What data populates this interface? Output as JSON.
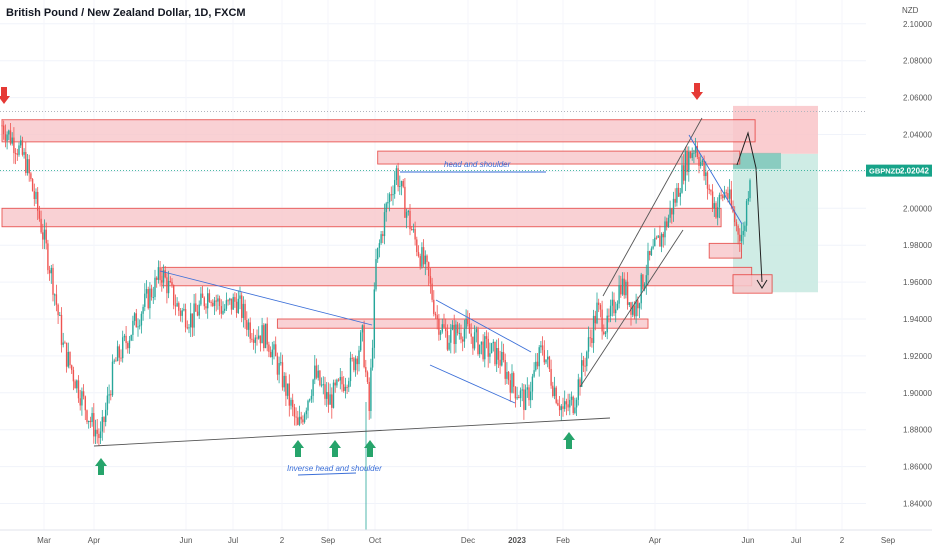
{
  "title": "British Pound / New Zealand Dollar, 1D, FXCM",
  "axis_unit": "NZD",
  "colors": {
    "up": "#26a69a",
    "down": "#ef5350",
    "zone_fill": "#f8c9cd",
    "zone_stroke": "#e53935",
    "arrow_down": "#e53935",
    "arrow_up": "#26a46b",
    "line_blue": "#3b6fd8",
    "line_dark": "#555555",
    "stop_fill": "#f9c4c8",
    "target_fill": "#c7e9e0",
    "price_label": "#17a389"
  },
  "chart_data": {
    "type": "candlestick",
    "title": "British Pound / New Zealand Dollar, 1D, FXCM",
    "ylabel": "NZD",
    "ylim": [
      1.825,
      2.105
    ],
    "y_ticks": [
      "2.10000",
      "2.08000",
      "2.06000",
      "2.04000",
      "2.00000",
      "1.98000",
      "1.96000",
      "1.94000",
      "1.92000",
      "1.90000",
      "1.88000",
      "1.86000",
      "1.84000"
    ],
    "x_ticks": [
      "Mar",
      "Apr",
      "Jun",
      "Jul",
      "2",
      "Sep",
      "Oct",
      "Dec",
      "2023",
      "Feb",
      "Apr",
      "Jun",
      "Jul",
      "2",
      "Sep"
    ],
    "current_price": {
      "symbol": "GBPNZD",
      "value": "2.02042",
      "y": 2.02042
    },
    "series_keypoints": [
      {
        "d": 0,
        "y": 2.045
      },
      {
        "d": 8,
        "y": 2.035
      },
      {
        "d": 14,
        "y": 2.025
      },
      {
        "d": 22,
        "y": 1.995
      },
      {
        "d": 30,
        "y": 1.96
      },
      {
        "d": 36,
        "y": 1.925
      },
      {
        "d": 44,
        "y": 1.905
      },
      {
        "d": 52,
        "y": 1.885
      },
      {
        "d": 58,
        "y": 1.875
      },
      {
        "d": 66,
        "y": 1.915
      },
      {
        "d": 74,
        "y": 1.93
      },
      {
        "d": 82,
        "y": 1.945
      },
      {
        "d": 88,
        "y": 1.955
      },
      {
        "d": 94,
        "y": 1.965
      },
      {
        "d": 104,
        "y": 1.945
      },
      {
        "d": 112,
        "y": 1.94
      },
      {
        "d": 122,
        "y": 1.955
      },
      {
        "d": 130,
        "y": 1.945
      },
      {
        "d": 138,
        "y": 1.95
      },
      {
        "d": 146,
        "y": 1.935
      },
      {
        "d": 156,
        "y": 1.93
      },
      {
        "d": 166,
        "y": 1.905
      },
      {
        "d": 174,
        "y": 1.88
      },
      {
        "d": 184,
        "y": 1.91
      },
      {
        "d": 192,
        "y": 1.895
      },
      {
        "d": 200,
        "y": 1.905
      },
      {
        "d": 206,
        "y": 1.915
      },
      {
        "d": 212,
        "y": 1.93
      },
      {
        "d": 216,
        "y": 1.89
      },
      {
        "d": 220,
        "y": 1.97
      },
      {
        "d": 226,
        "y": 2.0
      },
      {
        "d": 232,
        "y": 2.02
      },
      {
        "d": 236,
        "y": 2.005
      },
      {
        "d": 242,
        "y": 1.985
      },
      {
        "d": 250,
        "y": 1.965
      },
      {
        "d": 256,
        "y": 1.94
      },
      {
        "d": 262,
        "y": 1.93
      },
      {
        "d": 272,
        "y": 1.935
      },
      {
        "d": 282,
        "y": 1.925
      },
      {
        "d": 292,
        "y": 1.92
      },
      {
        "d": 300,
        "y": 1.905
      },
      {
        "d": 308,
        "y": 1.895
      },
      {
        "d": 318,
        "y": 1.925
      },
      {
        "d": 324,
        "y": 1.905
      },
      {
        "d": 330,
        "y": 1.89
      },
      {
        "d": 336,
        "y": 1.895
      },
      {
        "d": 342,
        "y": 1.915
      },
      {
        "d": 350,
        "y": 1.945
      },
      {
        "d": 356,
        "y": 1.935
      },
      {
        "d": 364,
        "y": 1.96
      },
      {
        "d": 372,
        "y": 1.945
      },
      {
        "d": 380,
        "y": 1.97
      },
      {
        "d": 388,
        "y": 1.985
      },
      {
        "d": 396,
        "y": 2.005
      },
      {
        "d": 402,
        "y": 2.025
      },
      {
        "d": 408,
        "y": 2.035
      },
      {
        "d": 414,
        "y": 2.015
      },
      {
        "d": 420,
        "y": 2.0
      },
      {
        "d": 426,
        "y": 2.01
      },
      {
        "d": 432,
        "y": 1.99
      },
      {
        "d": 436,
        "y": 1.985
      },
      {
        "d": 440,
        "y": 2.02
      }
    ],
    "annotations": {
      "head_and_shoulder": "head and shoulder",
      "inverse_head_and_shoulder": "Inverse head and shoulder"
    },
    "zones": [
      {
        "y1": 2.048,
        "y2": 2.036,
        "d1": 0,
        "d2": 443
      },
      {
        "y1": 2.031,
        "y2": 2.024,
        "d1": 221,
        "d2": 434
      },
      {
        "y1": 2.0,
        "y2": 1.99,
        "d1": 0,
        "d2": 423
      },
      {
        "y1": 1.968,
        "y2": 1.958,
        "d1": 94,
        "d2": 441
      },
      {
        "y1": 1.964,
        "y2": 1.954,
        "d1": 430,
        "d2": 453
      },
      {
        "y1": 1.94,
        "y2": 1.935,
        "d1": 162,
        "d2": 380
      },
      {
        "y1": 1.981,
        "y2": 1.973,
        "d1": 416,
        "d2": 435
      }
    ],
    "position": {
      "entry": 2.0295,
      "stop": 2.0555,
      "target": 1.9545,
      "d1": 430,
      "d2": 480
    }
  }
}
